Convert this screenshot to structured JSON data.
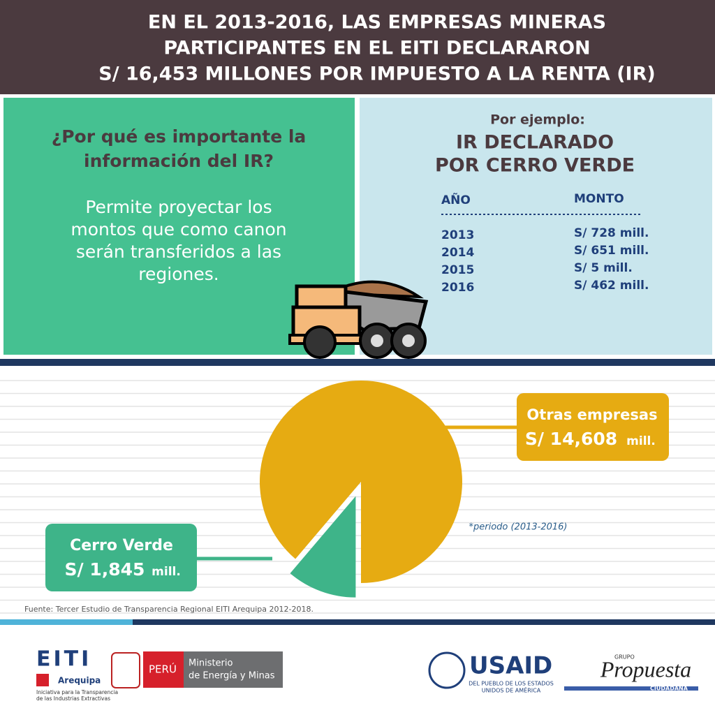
{
  "header": {
    "title_lines": [
      "EN EL 2013-2016, LAS EMPRESAS MINERAS",
      "PARTICIPANTES EN EL EITI DECLARARON",
      "S/ 16,453 MILLONES POR IMPUESTO A LA RENTA (IR)"
    ]
  },
  "left_panel": {
    "question_lines": [
      "¿Por qué es importante la",
      "información del IR?"
    ],
    "body_lines": [
      "Permite proyectar los",
      "montos que como canon",
      "serán transferidos a las",
      "regiones."
    ]
  },
  "right_panel": {
    "intro": "Por ejemplo:",
    "title_lines": [
      "IR DECLARADO",
      "POR CERRO VERDE"
    ],
    "table": {
      "headers": [
        "AÑO",
        "MONTO"
      ],
      "rows": [
        [
          "2013",
          "S/ 728 mill."
        ],
        [
          "2014",
          "S/ 651 mill."
        ],
        [
          "2015",
          "S/ 5 mill."
        ],
        [
          "2016",
          "S/ 462 mill."
        ]
      ]
    }
  },
  "chart_data": {
    "type": "pie",
    "categories": [
      "Cerro Verde",
      "Otras empresas"
    ],
    "values": [
      1845,
      14608
    ],
    "value_labels": [
      "S/ 1,845",
      "S/ 14,608"
    ],
    "unit": "mill.",
    "colors": [
      "#3eb489",
      "#e6ab12"
    ],
    "note": "*periodo (2013-2016)"
  },
  "source": "Fuente: Tercer Estudio de Transparencia Regional EITI Arequipa 2012-2018.",
  "logos": {
    "eiti": "EITI",
    "eiti_region": "Arequipa",
    "eiti_caption": [
      "Iniciativa para la Transparencia",
      "de las Industrias Extractivas"
    ],
    "peru": "PERÚ",
    "ministry": [
      "Ministerio",
      "de Energía y Minas"
    ],
    "usaid": "USAID",
    "usaid_caption": [
      "DEL PUEBLO DE LOS ESTADOS",
      "UNIDOS DE AMÉRICA"
    ],
    "grupo": "GRUPO",
    "propuesta": "Propuesta",
    "ciudadana": "CIUDADANA"
  }
}
